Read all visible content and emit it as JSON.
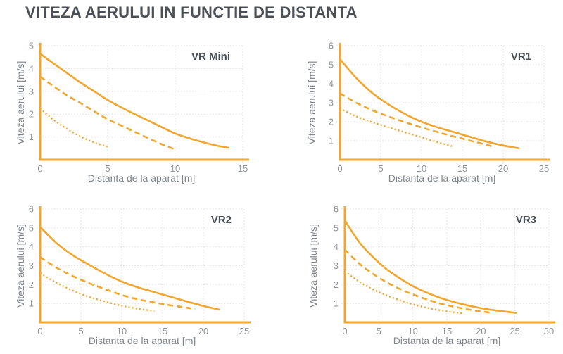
{
  "title": "VITEZA AERULUI IN FUNCTIE DE DISTANTA",
  "colors": {
    "accent": "#F2A62E",
    "grid": "#D9DBDD",
    "tick_label": "#8F9499",
    "axis_label": "#7E848B",
    "heading": "#4A5056",
    "background": "#FFFFFF"
  },
  "chart_data": [
    {
      "type": "line",
      "name": "VR Mini",
      "xlabel": "Distanta de la aparat [m]",
      "ylabel": "Viteza aerului [m/s]",
      "xlim": [
        0,
        15
      ],
      "ylim": [
        0,
        5
      ],
      "xticks": [
        0,
        5,
        10,
        15
      ],
      "yticks": [
        1,
        2,
        3,
        4,
        5
      ],
      "grid": true,
      "legend": false,
      "series": [
        {
          "style": "solid",
          "points": [
            [
              0,
              4.65
            ],
            [
              1,
              4.22
            ],
            [
              2,
              3.8
            ],
            [
              3,
              3.38
            ],
            [
              4,
              3.0
            ],
            [
              5,
              2.62
            ],
            [
              6,
              2.3
            ],
            [
              7,
              2.0
            ],
            [
              8,
              1.72
            ],
            [
              9,
              1.43
            ],
            [
              10,
              1.15
            ],
            [
              11,
              0.95
            ],
            [
              12,
              0.78
            ],
            [
              13,
              0.63
            ],
            [
              14,
              0.52
            ]
          ]
        },
        {
          "style": "dashed",
          "points": [
            [
              0,
              3.65
            ],
            [
              1,
              3.22
            ],
            [
              2,
              2.82
            ],
            [
              3,
              2.48
            ],
            [
              4,
              2.12
            ],
            [
              5,
              1.78
            ],
            [
              6,
              1.5
            ],
            [
              7,
              1.22
            ],
            [
              8,
              0.95
            ],
            [
              9,
              0.68
            ],
            [
              10,
              0.45
            ]
          ]
        },
        {
          "style": "dotted",
          "points": [
            [
              0,
              2.25
            ],
            [
              1,
              1.75
            ],
            [
              2,
              1.35
            ],
            [
              3,
              1.02
            ],
            [
              4,
              0.76
            ],
            [
              5,
              0.57
            ]
          ]
        }
      ]
    },
    {
      "type": "line",
      "name": "VR1",
      "xlabel": "Distanta de la aparat [m]",
      "ylabel": "Viteza aerului [m/s]",
      "xlim": [
        0,
        25
      ],
      "ylim": [
        0,
        6
      ],
      "xticks": [
        0,
        5,
        10,
        15,
        20,
        25
      ],
      "yticks": [
        1,
        2,
        3,
        4,
        5,
        6
      ],
      "grid": true,
      "legend": false,
      "series": [
        {
          "style": "solid",
          "points": [
            [
              0,
              5.3
            ],
            [
              2,
              4.3
            ],
            [
              4,
              3.5
            ],
            [
              6,
              2.9
            ],
            [
              8,
              2.4
            ],
            [
              10,
              2.0
            ],
            [
              12,
              1.7
            ],
            [
              14,
              1.45
            ],
            [
              16,
              1.2
            ],
            [
              18,
              0.95
            ],
            [
              20,
              0.75
            ],
            [
              22,
              0.6
            ]
          ]
        },
        {
          "style": "dashed",
          "points": [
            [
              0,
              3.5
            ],
            [
              2,
              3.0
            ],
            [
              4,
              2.6
            ],
            [
              6,
              2.27
            ],
            [
              8,
              1.97
            ],
            [
              10,
              1.7
            ],
            [
              12,
              1.45
            ],
            [
              14,
              1.22
            ],
            [
              16,
              1.0
            ],
            [
              18,
              0.78
            ],
            [
              19,
              0.66
            ]
          ]
        },
        {
          "style": "dotted",
          "points": [
            [
              0,
              2.7
            ],
            [
              2,
              2.28
            ],
            [
              4,
              1.97
            ],
            [
              6,
              1.7
            ],
            [
              8,
              1.44
            ],
            [
              10,
              1.18
            ],
            [
              12,
              0.92
            ],
            [
              14,
              0.68
            ]
          ]
        }
      ]
    },
    {
      "type": "line",
      "name": "VR2",
      "xlabel": "Distanta de la aparat [m]",
      "ylabel": "Viteza aerului [m/s]",
      "xlim": [
        0,
        25
      ],
      "ylim": [
        0,
        6
      ],
      "xticks": [
        0,
        5,
        10,
        15,
        20,
        25
      ],
      "yticks": [
        1,
        2,
        3,
        4,
        5,
        6
      ],
      "grid": true,
      "legend": false,
      "series": [
        {
          "style": "solid",
          "points": [
            [
              0,
              5.05
            ],
            [
              2,
              4.2
            ],
            [
              4,
              3.55
            ],
            [
              6,
              3.05
            ],
            [
              8,
              2.57
            ],
            [
              10,
              2.16
            ],
            [
              12,
              1.85
            ],
            [
              14,
              1.6
            ],
            [
              16,
              1.35
            ],
            [
              18,
              1.1
            ],
            [
              20,
              0.87
            ],
            [
              22,
              0.67
            ]
          ]
        },
        {
          "style": "dashed",
          "points": [
            [
              0,
              3.45
            ],
            [
              2,
              2.9
            ],
            [
              4,
              2.45
            ],
            [
              6,
              2.08
            ],
            [
              8,
              1.75
            ],
            [
              10,
              1.45
            ],
            [
              12,
              1.22
            ],
            [
              14,
              1.05
            ],
            [
              16,
              0.9
            ],
            [
              18,
              0.77
            ],
            [
              19,
              0.7
            ]
          ]
        },
        {
          "style": "dotted",
          "points": [
            [
              0,
              2.6
            ],
            [
              2,
              2.1
            ],
            [
              4,
              1.68
            ],
            [
              6,
              1.35
            ],
            [
              8,
              1.1
            ],
            [
              10,
              0.88
            ],
            [
              12,
              0.72
            ],
            [
              14,
              0.6
            ]
          ]
        }
      ]
    },
    {
      "type": "line",
      "name": "VR3",
      "xlabel": "Distanta de la aparat [m]",
      "ylabel": "Viteza aerului [m/s]",
      "xlim": [
        0,
        30
      ],
      "ylim": [
        0,
        6
      ],
      "xticks": [
        0,
        5,
        10,
        15,
        20,
        25,
        30
      ],
      "yticks": [
        1,
        2,
        3,
        4,
        5,
        6
      ],
      "grid": true,
      "legend": false,
      "series": [
        {
          "style": "solid",
          "points": [
            [
              0,
              5.4
            ],
            [
              2,
              4.3
            ],
            [
              4,
              3.5
            ],
            [
              6,
              2.85
            ],
            [
              8,
              2.35
            ],
            [
              10,
              1.92
            ],
            [
              12,
              1.58
            ],
            [
              14,
              1.3
            ],
            [
              16,
              1.08
            ],
            [
              18,
              0.9
            ],
            [
              20,
              0.75
            ],
            [
              22,
              0.64
            ],
            [
              24,
              0.55
            ],
            [
              25.3,
              0.5
            ]
          ]
        },
        {
          "style": "dashed",
          "points": [
            [
              0,
              3.85
            ],
            [
              2,
              3.15
            ],
            [
              4,
              2.6
            ],
            [
              6,
              2.15
            ],
            [
              8,
              1.78
            ],
            [
              10,
              1.48
            ],
            [
              12,
              1.22
            ],
            [
              14,
              1.0
            ],
            [
              16,
              0.83
            ],
            [
              18,
              0.69
            ],
            [
              20,
              0.58
            ],
            [
              21.7,
              0.5
            ]
          ]
        },
        {
          "style": "dotted",
          "points": [
            [
              0,
              2.7
            ],
            [
              2,
              2.18
            ],
            [
              4,
              1.77
            ],
            [
              6,
              1.45
            ],
            [
              8,
              1.18
            ],
            [
              10,
              0.95
            ],
            [
              12,
              0.78
            ],
            [
              14,
              0.64
            ],
            [
              16,
              0.53
            ],
            [
              17.3,
              0.47
            ]
          ]
        }
      ]
    }
  ]
}
